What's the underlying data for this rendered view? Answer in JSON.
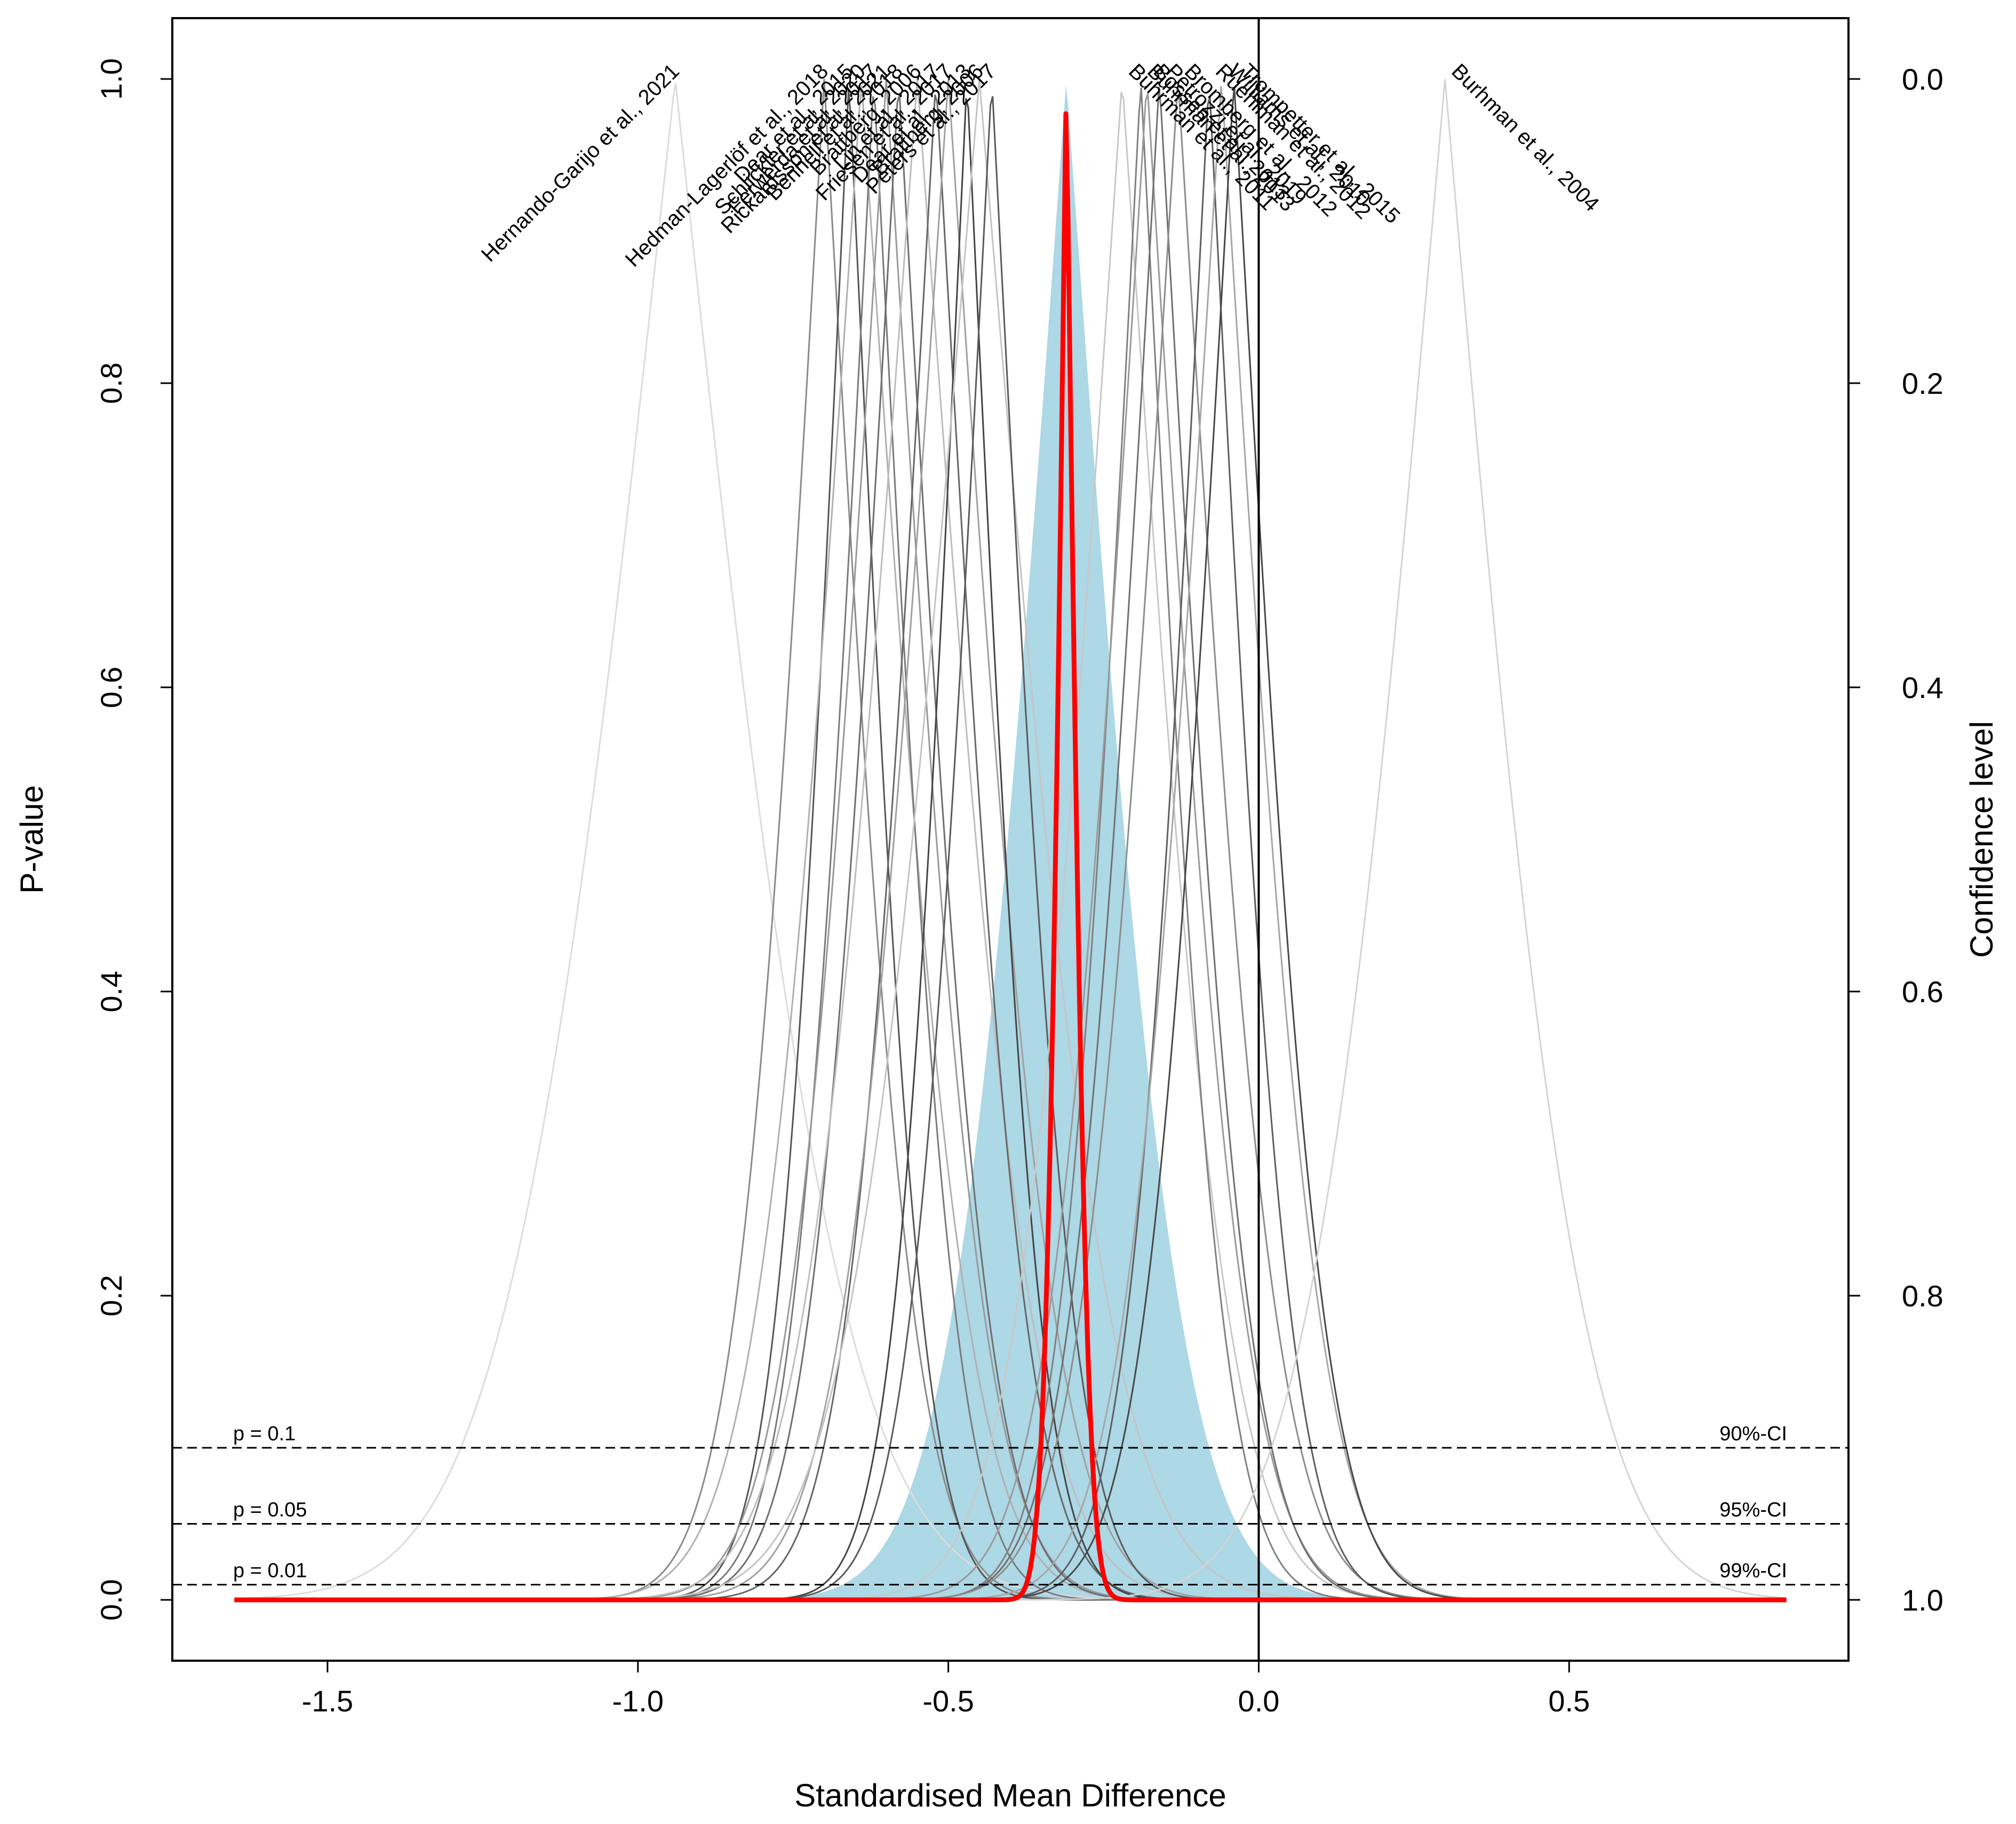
{
  "chart_data": {
    "type": "line",
    "subtype": "p-value function (drapery) plot",
    "xlabel": "Standardised Mean Difference",
    "ylabel": "P-value",
    "y2label": "Confidence level",
    "xlim": [
      -1.75,
      0.95
    ],
    "ylim": [
      -0.04,
      1.04
    ],
    "xticks": [
      -1.5,
      -1.0,
      -0.5,
      0.0,
      0.5
    ],
    "xtick_labels": [
      "-1.5",
      "-1.0",
      "-0.5",
      "0.0",
      "0.5"
    ],
    "yticks": [
      0.0,
      0.2,
      0.4,
      0.6,
      0.8,
      1.0
    ],
    "ytick_labels": [
      "0.0",
      "0.2",
      "0.4",
      "0.6",
      "0.8",
      "1.0"
    ],
    "y2tick_labels": [
      "1.0",
      "0.8",
      "0.6",
      "0.4",
      "0.2",
      "0.0"
    ],
    "grid": false,
    "reference_line_x": 0.0,
    "curve_x_range": [
      -1.65,
      0.85
    ],
    "significance_lines": [
      {
        "p": 0.1,
        "left_label": "p = 0.1",
        "right_label": "90%-CI"
      },
      {
        "p": 0.05,
        "left_label": "p = 0.05",
        "right_label": "95%-CI"
      },
      {
        "p": 0.01,
        "left_label": "p = 0.01",
        "right_label": "99%-CI"
      }
    ],
    "pooled_effect": {
      "estimate": -0.31,
      "se": 0.025,
      "color": "#ff0000"
    },
    "prediction_region": {
      "estimate": -0.31,
      "se": 0.14,
      "color": "#add8e6"
    },
    "studies": [
      {
        "label": "Hernando-Garijo et al., 2021",
        "estimate": -0.94,
        "se": 0.21,
        "color": "#dcdcdc"
      },
      {
        "label": "Hedman-Lagerlöf et al., 2018",
        "estimate": -0.7,
        "se": 0.11,
        "color": "#8a8a8a"
      },
      {
        "label": "Dear et al., 2015",
        "estimate": -0.66,
        "se": 0.09,
        "color": "#555555"
      },
      {
        "label": "Schlickler et al., 2020",
        "estimate": -0.64,
        "se": 0.13,
        "color": "#b0b0b0"
      },
      {
        "label": "Ferwerda et al., 2017",
        "estimate": -0.62,
        "se": 0.1,
        "color": "#7a7a7a"
      },
      {
        "label": "Rickardsson et al., 2021",
        "estimate": -0.6,
        "se": 0.12,
        "color": "#999999"
      },
      {
        "label": "Bennell et al., 2018",
        "estimate": -0.58,
        "se": 0.11,
        "color": "#6e6e6e"
      },
      {
        "label": "Brattberg, 2006",
        "estimate": -0.55,
        "se": 0.14,
        "color": "#bdbdbd"
      },
      {
        "label": "Lin et al., 2017",
        "estimate": -0.52,
        "se": 0.11,
        "color": "#666666"
      },
      {
        "label": "Friesen et al., 2017",
        "estimate": -0.5,
        "se": 0.13,
        "color": "#a0a0a0"
      },
      {
        "label": "Dear et al., 2013",
        "estimate": -0.47,
        "se": 0.09,
        "color": "#444444"
      },
      {
        "label": "Brattberg, 2006",
        "estimate": -0.45,
        "se": 0.16,
        "color": "#c4c4c4"
      },
      {
        "label": "Peters et al., 2017",
        "estimate": -0.43,
        "se": 0.1,
        "color": "#5a5a5a"
      },
      {
        "label": "Buhrman et al., 2011",
        "estimate": -0.22,
        "se": 0.13,
        "color": "#c8c8c8"
      },
      {
        "label": "Buhrman et al., 2013",
        "estimate": -0.19,
        "se": 0.1,
        "color": "#808080"
      },
      {
        "label": "Bossen et al., 2013",
        "estimate": -0.18,
        "se": 0.12,
        "color": "#9a9a9a"
      },
      {
        "label": "Petrozzi et al., 2019",
        "estimate": -0.16,
        "se": 0.11,
        "color": "#707070"
      },
      {
        "label": "Bromberg et al., 2012",
        "estimate": -0.13,
        "se": 0.12,
        "color": "#8c8c8c"
      },
      {
        "label": "Ruehlman et al., 2012",
        "estimate": -0.08,
        "se": 0.1,
        "color": "#5e5e5e"
      },
      {
        "label": "Williams et al., 2010",
        "estimate": -0.06,
        "se": 0.12,
        "color": "#a6a6a6"
      },
      {
        "label": "Trompetter et al., 2015",
        "estimate": -0.04,
        "se": 0.11,
        "color": "#474747"
      },
      {
        "label": "Burhman et al., 2004",
        "estimate": 0.3,
        "se": 0.17,
        "color": "#d4d4d4"
      }
    ]
  }
}
